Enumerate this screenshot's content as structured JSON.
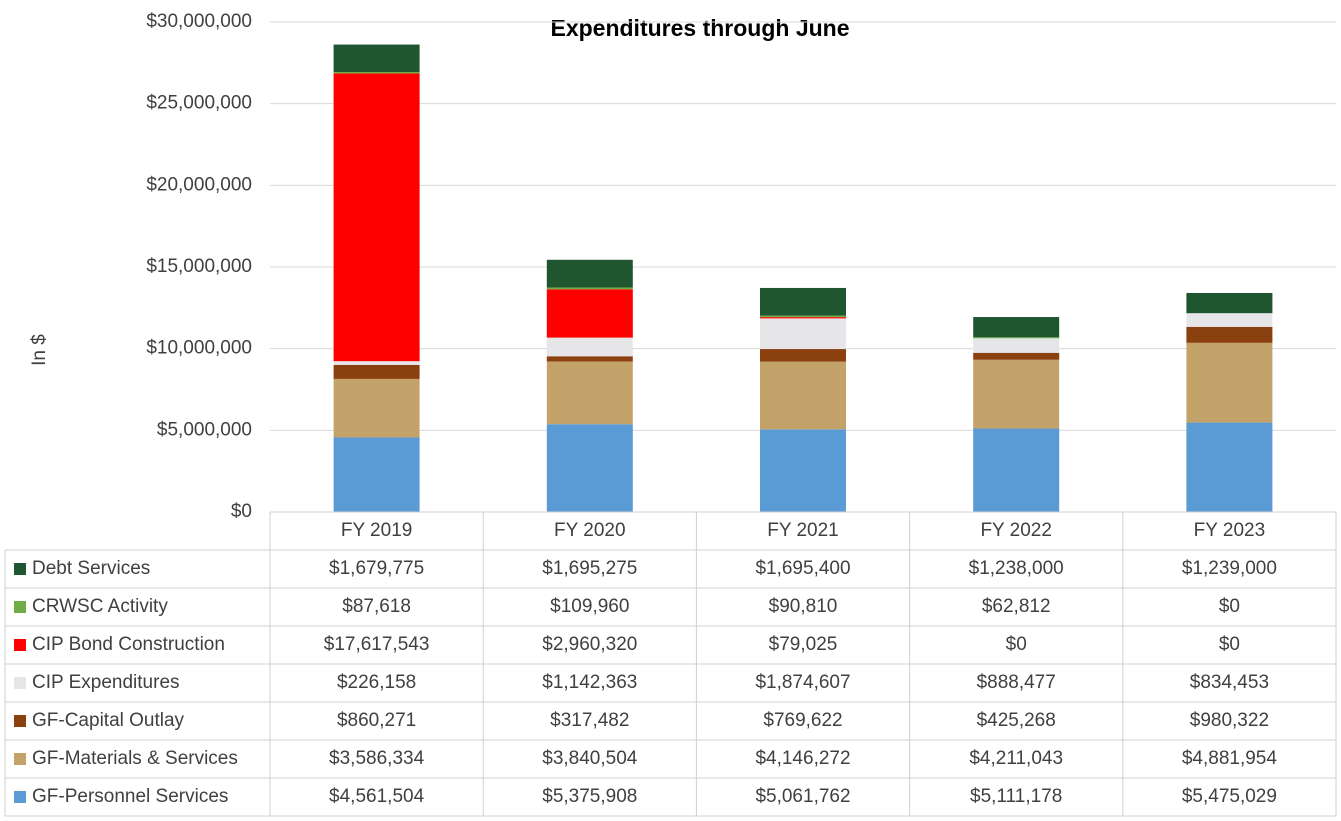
{
  "chart_data": {
    "type": "stacked_bar",
    "title": "Expenditures through June",
    "y_label": "In $",
    "categories": [
      "FY 2019",
      "FY 2020",
      "FY 2021",
      "FY 2022",
      "FY 2023"
    ],
    "series": [
      {
        "name": "GF-Personnel Services",
        "color": "#5b9bd5",
        "values": [
          4561504,
          5375908,
          5061762,
          5111178,
          5475029
        ],
        "value_labels": [
          "$4,561,504",
          "$5,375,908",
          "$5,061,762",
          "$5,111,178",
          "$5,475,029"
        ]
      },
      {
        "name": "GF-Materials & Services",
        "color": "#c4a36b",
        "values": [
          3586334,
          3840504,
          4146272,
          4211043,
          4881954
        ],
        "value_labels": [
          "$3,586,334",
          "$3,840,504",
          "$4,146,272",
          "$4,211,043",
          "$4,881,954"
        ]
      },
      {
        "name": "GF-Capital Outlay",
        "color": "#8b4010",
        "values": [
          860271,
          317482,
          769622,
          425268,
          980322
        ],
        "value_labels": [
          "$860,271",
          "$317,482",
          "$769,622",
          "$425,268",
          "$980,322"
        ]
      },
      {
        "name": "CIP Expenditures",
        "color": "#e6e6e8",
        "values": [
          226158,
          1142363,
          1874607,
          888477,
          834453
        ],
        "value_labels": [
          "$226,158",
          "$1,142,363",
          "$1,874,607",
          "$888,477",
          "$834,453"
        ]
      },
      {
        "name": "CIP Bond Construction",
        "color": "#ff0000",
        "values": [
          17617543,
          2960320,
          79025,
          0,
          0
        ],
        "value_labels": [
          "$17,617,543",
          "$2,960,320",
          "$79,025",
          "$0",
          "$0"
        ]
      },
      {
        "name": "CRWSC Activity",
        "color": "#70ad47",
        "values": [
          87618,
          109960,
          90810,
          62812,
          0
        ],
        "value_labels": [
          "$87,618",
          "$109,960",
          "$90,810",
          "$62,812",
          "$0"
        ]
      },
      {
        "name": "Debt Services",
        "color": "#1f5630",
        "values": [
          1679775,
          1695275,
          1695400,
          1238000,
          1239000
        ],
        "value_labels": [
          "$1,679,775",
          "$1,695,275",
          "$1,695,400",
          "$1,238,000",
          "$1,239,000"
        ]
      }
    ],
    "ylim": [
      0,
      30000000
    ],
    "yticks": [
      {
        "value": 0,
        "label": "$0"
      },
      {
        "value": 5000000,
        "label": "$5,000,000"
      },
      {
        "value": 10000000,
        "label": "$10,000,000"
      },
      {
        "value": 15000000,
        "label": "$15,000,000"
      },
      {
        "value": 20000000,
        "label": "$20,000,000"
      },
      {
        "value": 25000000,
        "label": "$25,000,000"
      },
      {
        "value": 30000000,
        "label": "$30,000,000"
      }
    ],
    "grid": true
  }
}
